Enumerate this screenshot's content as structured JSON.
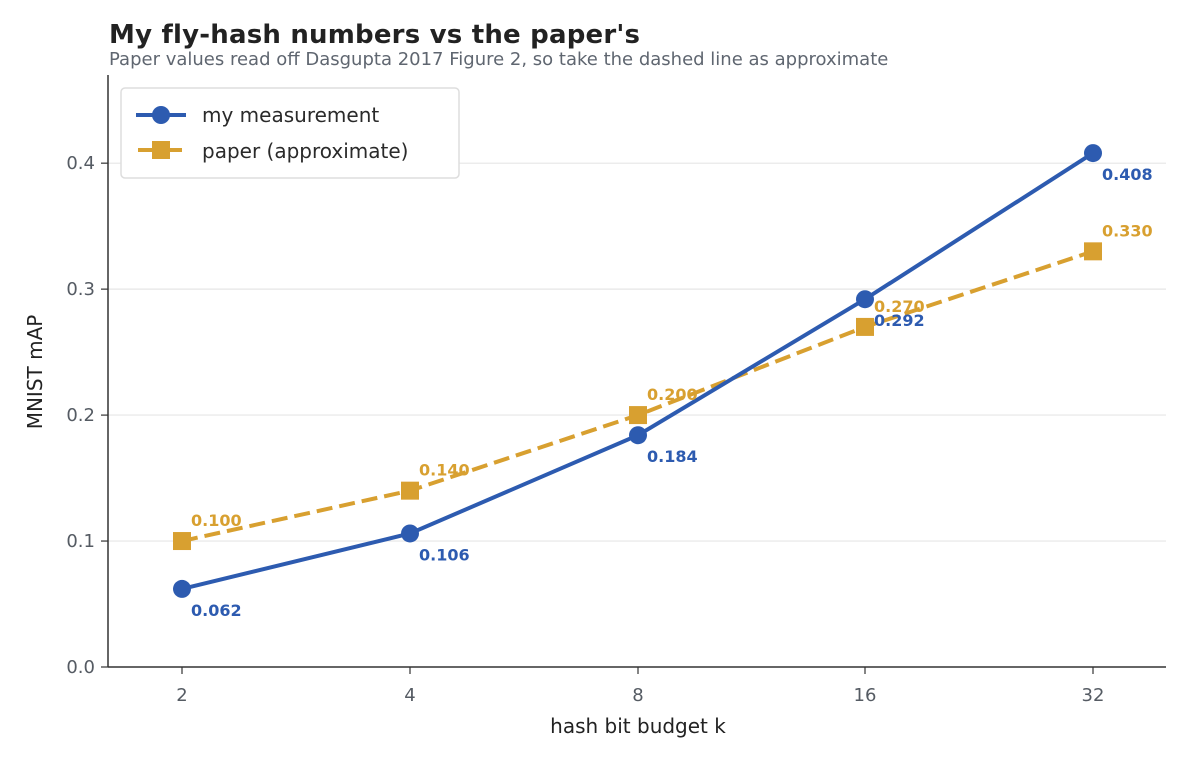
{
  "header": {
    "title": "My fly-hash numbers vs the paper's",
    "subtitle": "Paper values read off Dasgupta 2017 Figure 2, so take the dashed line as approximate"
  },
  "colors": {
    "measurement": "#2d5bb0",
    "paper": "#d8a030",
    "grid": "#e6e6e6",
    "axis": "#333333"
  },
  "chart_data": {
    "type": "line",
    "title": "My fly-hash numbers vs the paper's",
    "subtitle": "Paper values read off Dasgupta 2017 Figure 2, so take the dashed line as approximate",
    "xlabel": "hash bit budget k",
    "ylabel": "MNIST mAP",
    "categories": [
      "2",
      "4",
      "8",
      "16",
      "32"
    ],
    "x": [
      2,
      4,
      8,
      16,
      32
    ],
    "x_scale": "log2",
    "yticks": [
      "0.0",
      "0.1",
      "0.2",
      "0.3",
      "0.4"
    ],
    "ylim": [
      0,
      0.47
    ],
    "grid": "horizontal",
    "legend_position": "upper left",
    "series": [
      {
        "name": "my measurement",
        "values": [
          0.062,
          0.106,
          0.184,
          0.292,
          0.408
        ],
        "style": "solid",
        "marker": "circle",
        "labels": [
          "0.062",
          "0.106",
          "0.184",
          "0.292",
          "0.408"
        ]
      },
      {
        "name": "paper (approximate)",
        "values": [
          0.1,
          0.14,
          0.2,
          0.27,
          0.33
        ],
        "style": "dashed",
        "marker": "square",
        "labels": [
          "0.100",
          "0.140",
          "0.200",
          "0.270",
          "0.330"
        ]
      }
    ]
  }
}
